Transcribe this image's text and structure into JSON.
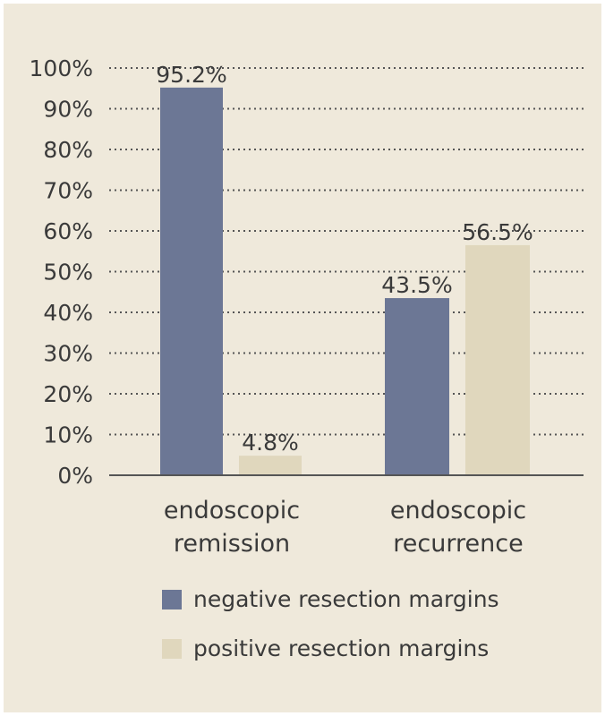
{
  "chart_data": {
    "type": "bar",
    "categories": [
      [
        "endoscopic",
        "remission"
      ],
      [
        "endoscopic",
        "recurrence"
      ]
    ],
    "series": [
      {
        "name": "negative resection margins",
        "values": [
          95.2,
          43.5
        ],
        "labels": [
          "95.2%",
          "43.5%"
        ],
        "color": "#6c7795"
      },
      {
        "name": "positive resection margins",
        "values": [
          4.8,
          56.5
        ],
        "labels": [
          "4.8%",
          "56.5%"
        ],
        "color": "#e0d7bd"
      }
    ],
    "yticks": [
      "0%",
      "10%",
      "20%",
      "30%",
      "40%",
      "50%",
      "60%",
      "70%",
      "80%",
      "90%",
      "100%"
    ],
    "ylim": [
      0,
      100
    ],
    "grid": true,
    "legend_position": "bottom",
    "background": "#efe9db",
    "axis_color": "#555555"
  }
}
